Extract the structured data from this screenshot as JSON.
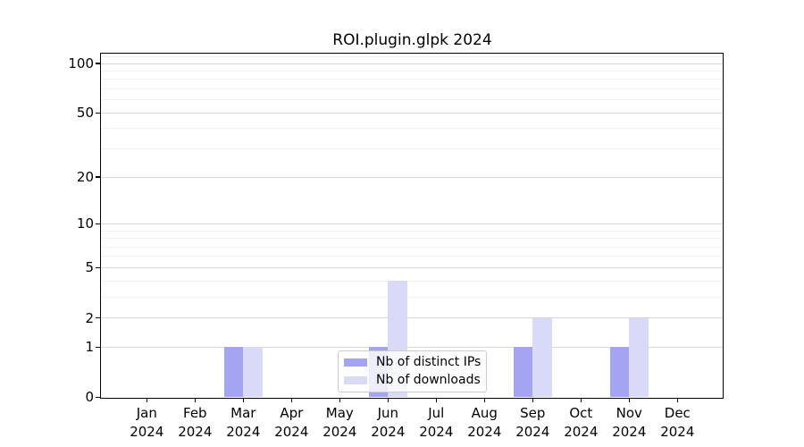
{
  "title": "ROI.plugin.glpk 2024",
  "chart_data": {
    "type": "bar",
    "title": "ROI.plugin.glpk 2024",
    "scale": "log1p",
    "categories": [
      "Jan",
      "Feb",
      "Mar",
      "Apr",
      "May",
      "Jun",
      "Jul",
      "Aug",
      "Sep",
      "Oct",
      "Nov",
      "Dec"
    ],
    "year_label": "2024",
    "series": [
      {
        "name": "Nb of distinct IPs",
        "color": "#a4a4f2",
        "values": [
          0,
          0,
          1,
          0,
          0,
          1,
          0,
          0,
          1,
          0,
          1,
          0
        ]
      },
      {
        "name": "Nb of downloads",
        "color": "#d8daf8",
        "values": [
          0,
          0,
          1,
          0,
          0,
          4,
          0,
          0,
          2,
          0,
          2,
          0
        ]
      }
    ],
    "y_major_ticks": [
      0,
      1,
      2,
      5,
      10,
      20,
      50,
      100
    ],
    "y_minor_ticks": [
      3,
      4,
      6,
      7,
      8,
      9,
      30,
      40,
      60,
      70,
      80,
      90,
      110
    ],
    "ylim": [
      0,
      115
    ],
    "grid": true,
    "legend_position": "lower center",
    "colors": {
      "major_grid": "#d7d7d7",
      "minor_grid": "#f0f0f0",
      "axis": "#000000",
      "legend_border": "#cccccc"
    }
  }
}
